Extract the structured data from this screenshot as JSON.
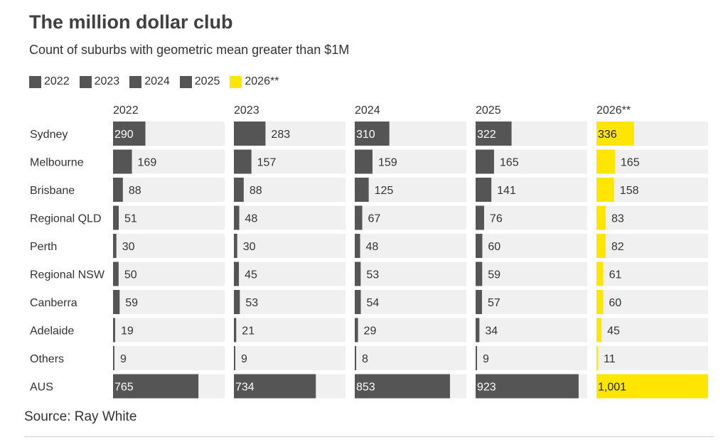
{
  "title": "The million dollar club",
  "subtitle": "Count of suburbs with geometric mean greater than $1M",
  "source": "Source: Ray White",
  "colors": {
    "bar": "#555555",
    "highlight": "#ffe600",
    "track": "#f0f0f0"
  },
  "chart_data": {
    "type": "bar",
    "title": "The million dollar club",
    "subtitle": "Count of suburbs with geometric mean greater than $1M",
    "categories": [
      "Sydney",
      "Melbourne",
      "Brisbane",
      "Regional QLD",
      "Perth",
      "Regional NSW",
      "Canberra",
      "Adelaide",
      "Others",
      "AUS"
    ],
    "legend": [
      "2022",
      "2023",
      "2024",
      "2025",
      "2026**"
    ],
    "legend_position": "top-left",
    "series": [
      {
        "name": "2022",
        "color": "#555555",
        "values": [
          290,
          169,
          88,
          51,
          30,
          50,
          59,
          19,
          9,
          765
        ],
        "labels": [
          "290",
          "169",
          "88",
          "51",
          "30",
          "50",
          "59",
          "19",
          "9",
          "765"
        ]
      },
      {
        "name": "2023",
        "color": "#555555",
        "values": [
          283,
          157,
          88,
          48,
          30,
          45,
          53,
          21,
          9,
          734
        ],
        "labels": [
          "283",
          "157",
          "88",
          "48",
          "30",
          "45",
          "53",
          "21",
          "9",
          "734"
        ]
      },
      {
        "name": "2024",
        "color": "#555555",
        "values": [
          310,
          159,
          125,
          67,
          48,
          53,
          54,
          29,
          8,
          853
        ],
        "labels": [
          "310",
          "159",
          "125",
          "67",
          "48",
          "53",
          "54",
          "29",
          "8",
          "853"
        ]
      },
      {
        "name": "2025",
        "color": "#555555",
        "values": [
          322,
          165,
          141,
          76,
          60,
          59,
          57,
          34,
          9,
          923
        ],
        "labels": [
          "322",
          "165",
          "141",
          "76",
          "60",
          "59",
          "57",
          "34",
          "9",
          "923"
        ]
      },
      {
        "name": "2026**",
        "color": "#ffe600",
        "values": [
          336,
          165,
          158,
          83,
          82,
          61,
          60,
          45,
          11,
          1001
        ],
        "labels": [
          "336",
          "165",
          "158",
          "83",
          "82",
          "61",
          "60",
          "45",
          "11",
          "1,001"
        ]
      }
    ],
    "xlim": [
      0,
      1000
    ],
    "grid": false
  }
}
